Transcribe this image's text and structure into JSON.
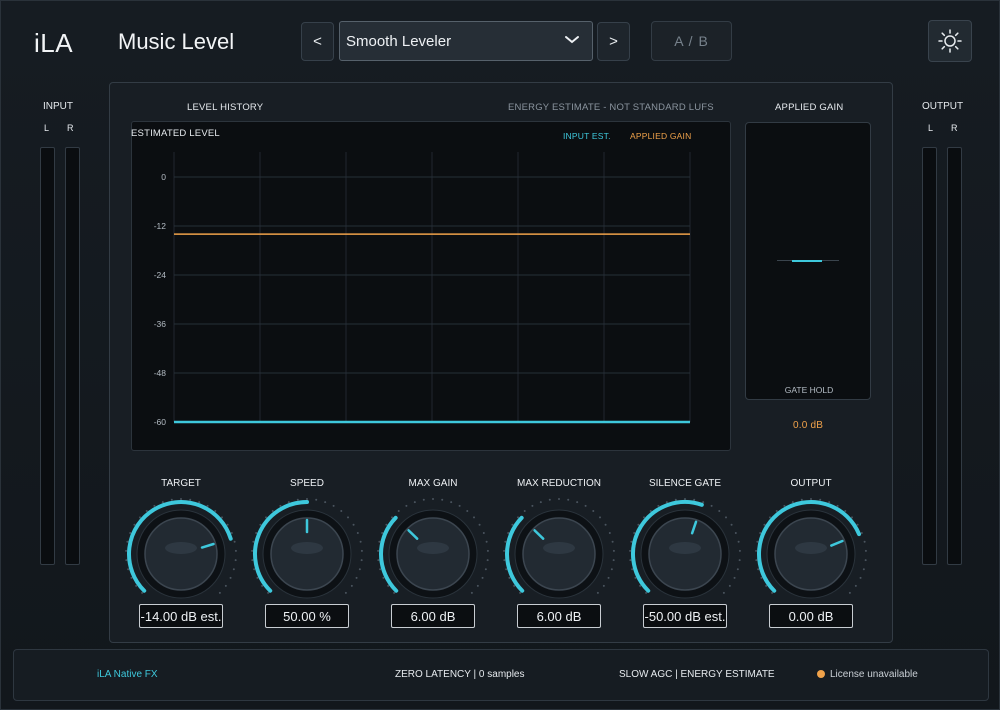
{
  "header": {
    "brand": "iLA",
    "title": "Music Level",
    "prev_label": "<",
    "next_label": ">",
    "preset": "Smooth Leveler",
    "ab_label": "A / B"
  },
  "meters": {
    "input_label": "INPUT",
    "output_label": "OUTPUT",
    "left": "L",
    "right": "R"
  },
  "history": {
    "title": "LEVEL HISTORY",
    "note": "ENERGY ESTIMATE - NOT STANDARD LUFS",
    "graph_label": "ESTIMATED LEVEL",
    "legend_input": "INPUT EST.",
    "legend_gain": "APPLIED GAIN",
    "colors": {
      "input": "#3ec8dc",
      "gain": "#f0a24a"
    }
  },
  "chart_data": {
    "type": "line",
    "ylabel": "",
    "yticks": [
      "0",
      "-12",
      "-24",
      "-36",
      "-48",
      "-60"
    ],
    "ylim": [
      -60,
      0
    ],
    "series": [
      {
        "name": "INPUT EST.",
        "values": [
          -60,
          -60
        ]
      },
      {
        "name": "APPLIED GAIN",
        "values": [
          -14,
          -14
        ]
      }
    ]
  },
  "applied_gain": {
    "title": "APPLIED GAIN",
    "gate_hold": "GATE HOLD",
    "value": "0.0 dB",
    "gain_db": 0.0
  },
  "knobs": [
    {
      "title": "TARGET",
      "value": "-14.00 dB est.",
      "fraction": 0.77
    },
    {
      "title": "SPEED",
      "value": "50.00 %",
      "fraction": 0.5
    },
    {
      "title": "MAX GAIN",
      "value": "6.00 dB",
      "fraction": 0.33
    },
    {
      "title": "MAX REDUCTION",
      "value": "6.00 dB",
      "fraction": 0.33
    },
    {
      "title": "SILENCE GATE",
      "value": "-50.00 dB est.",
      "fraction": 0.57
    },
    {
      "title": "OUTPUT",
      "value": "0.00 dB",
      "fraction": 0.75
    }
  ],
  "footer": {
    "brand": "iLA  Native FX",
    "latency": "ZERO LATENCY  |  0 samples",
    "mode": "SLOW AGC  |  ENERGY ESTIMATE",
    "license": "License unavailable"
  }
}
